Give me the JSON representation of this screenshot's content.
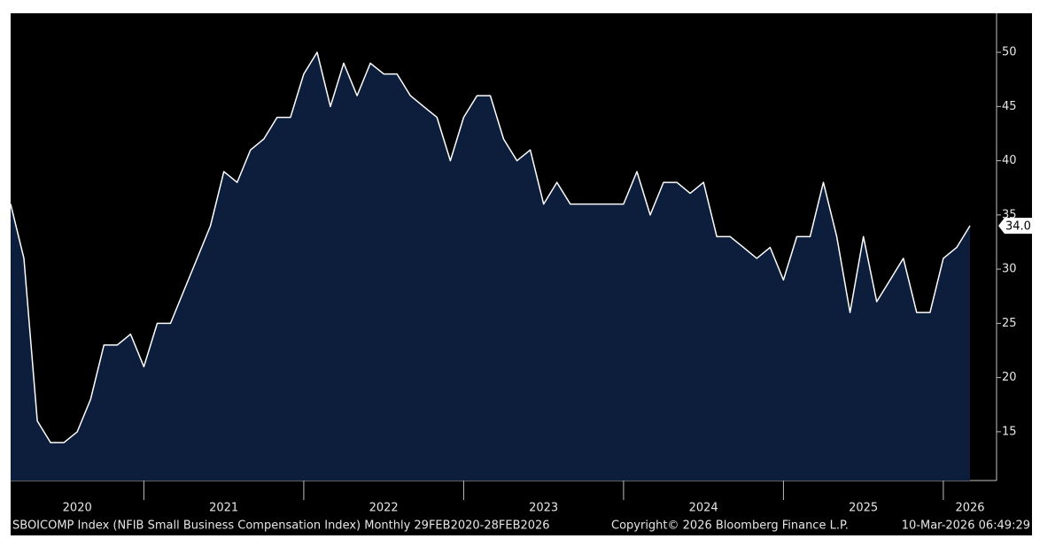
{
  "chart_data": {
    "type": "area",
    "title": "SBOICOMP Index (NFIB Small Business Compensation Index) Monthly 29FEB2020-28FEB2026",
    "source": "Copyright© 2026 Bloomberg Finance L.P.",
    "timestamp": "10-Mar-2026 06:49:29",
    "categories": [
      null,
      null,
      null,
      null,
      null,
      "2020",
      null,
      null,
      null,
      null,
      null,
      null,
      null,
      null,
      null,
      null,
      "2021",
      null,
      null,
      null,
      null,
      null,
      null,
      null,
      null,
      null,
      null,
      null,
      "2022",
      null,
      null,
      null,
      null,
      null,
      null,
      null,
      null,
      null,
      null,
      null,
      "2023",
      null,
      null,
      null,
      null,
      null,
      null,
      null,
      null,
      null,
      null,
      null,
      "2024",
      null,
      null,
      null,
      null,
      null,
      null,
      null,
      null,
      null,
      null,
      null,
      "2025",
      null,
      null,
      null,
      null,
      null,
      null,
      null,
      "2026"
    ],
    "series": [
      {
        "name": "SBOICOMP",
        "color": "#ffffff",
        "fill": "#0d1e3c",
        "values": [
          36,
          31,
          16,
          14,
          14,
          15,
          18,
          23,
          23,
          24,
          21,
          25,
          25,
          28,
          31,
          34,
          39,
          38,
          41,
          42,
          44,
          44,
          48,
          50,
          45,
          49,
          46,
          49,
          48,
          48,
          46,
          45,
          44,
          40,
          44,
          46,
          46,
          42,
          40,
          41,
          36,
          38,
          36,
          36,
          36,
          36,
          36,
          39,
          35,
          38,
          38,
          37,
          38,
          33,
          33,
          32,
          31,
          32,
          29,
          33,
          33,
          38,
          33,
          26,
          33,
          27,
          29,
          31,
          26,
          26,
          31,
          32,
          34
        ],
        "value_labels": [
          null,
          null,
          null,
          null,
          null,
          null,
          null,
          null,
          null,
          null,
          null,
          null,
          null,
          null,
          null,
          null,
          null,
          null,
          null,
          null,
          null,
          null,
          null,
          null,
          null,
          null,
          null,
          null,
          null,
          null,
          null,
          null,
          null,
          null,
          null,
          null,
          null,
          null,
          null,
          null,
          null,
          null,
          null,
          null,
          null,
          null,
          null,
          null,
          null,
          null,
          null,
          null,
          null,
          null,
          null,
          null,
          null,
          null,
          null,
          null,
          null,
          null,
          null,
          null,
          null,
          null,
          null,
          null,
          null,
          null,
          null,
          null,
          "34.0"
        ]
      }
    ],
    "ylim": [
      10.5,
      53.6
    ],
    "yticks": [
      15,
      20,
      25,
      30,
      35,
      40,
      45,
      50
    ],
    "y_axis_side": "right"
  }
}
